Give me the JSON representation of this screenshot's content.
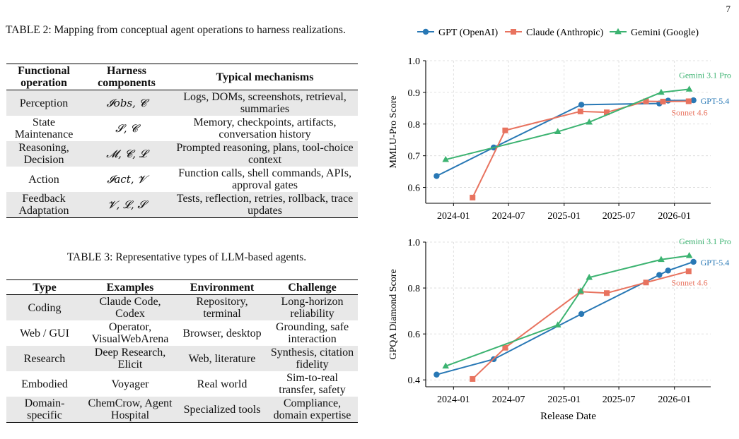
{
  "page_number": "7",
  "table2": {
    "caption": "TABLE 2: Mapping from conceptual agent operations to harness realizations.",
    "headers": [
      "Functional operation",
      "Harness components",
      "Typical mechanisms"
    ],
    "rows": [
      [
        "Perception",
        "𝓘obs, 𝓒",
        "Logs, DOMs, screenshots, retrieval, summaries"
      ],
      [
        "State Maintenance",
        "𝓢, 𝓒",
        "Memory, checkpoints, artifacts, conversation history"
      ],
      [
        "Reasoning, Decision",
        "𝓜, 𝓒, 𝓛",
        "Prompted reasoning, plans, tool-choice context"
      ],
      [
        "Action",
        "𝓘act, 𝓥",
        "Function calls, shell commands, APIs, approval gates"
      ],
      [
        "Feedback Adaptation",
        "𝓥, 𝓛, 𝓢",
        "Tests, reflection, retries, rollback, trace updates"
      ]
    ]
  },
  "table3": {
    "caption": "TABLE 3: Representative types of LLM-based agents.",
    "headers": [
      "Type",
      "Examples",
      "Environment",
      "Challenge"
    ],
    "rows": [
      [
        "Coding",
        "Claude Code, Codex",
        "Repository, terminal",
        "Long-horizon reliability"
      ],
      [
        "Web / GUI",
        "Operator, VisualWebArena",
        "Browser, desktop",
        "Grounding, safe interaction"
      ],
      [
        "Research",
        "Deep Research, Elicit",
        "Web, literature",
        "Synthesis, citation fidelity"
      ],
      [
        "Embodied",
        "Voyager",
        "Real world",
        "Sim-to-real transfer, safety"
      ],
      [
        "Domain-specific",
        "ChemCrow, Agent Hospital",
        "Specialized tools",
        "Compliance, domain expertise"
      ]
    ]
  },
  "chart_data": [
    {
      "type": "line",
      "ylabel": "MMLU-Pro Score",
      "xlabel": "",
      "ylim": [
        0.55,
        1.0
      ],
      "yticks": [
        0.6,
        0.7,
        0.8,
        0.9,
        1.0
      ],
      "xticks": [
        "2024-01",
        "2024-07",
        "2025-01",
        "2025-07",
        "2026-01"
      ],
      "grid": true,
      "legend": "top",
      "series": [
        {
          "name": "GPT (OpenAI)",
          "color": "#2878b5",
          "marker": "circle",
          "x": [
            "2023-11-06",
            "2024-05-13",
            "2025-02-27",
            "2025-11-12",
            "2025-12-11",
            "2026-03-05"
          ],
          "y": [
            0.636,
            0.726,
            0.861,
            0.865,
            0.874,
            0.875
          ],
          "end_label": "GPT-5.4"
        },
        {
          "name": "Claude (Anthropic)",
          "color": "#e8735f",
          "marker": "square",
          "x": [
            "2024-03-04",
            "2024-06-20",
            "2025-02-24",
            "2025-05-22",
            "2025-09-29",
            "2025-11-24",
            "2026-02-17"
          ],
          "y": [
            0.568,
            0.78,
            0.84,
            0.837,
            0.872,
            0.871,
            0.872
          ],
          "end_label": "Sonnet 4.6"
        },
        {
          "name": "Gemini (Google)",
          "color": "#3cb371",
          "marker": "triangle",
          "x": [
            "2023-12-06",
            "2024-12-11",
            "2025-03-25",
            "2025-11-18",
            "2026-02-19"
          ],
          "y": [
            0.688,
            0.776,
            0.806,
            0.9,
            0.91
          ],
          "end_label": "Gemini 3.1 Pro"
        }
      ]
    },
    {
      "type": "line",
      "ylabel": "GPQA Diamond Score",
      "xlabel": "Release Date",
      "ylim": [
        0.37,
        1.0
      ],
      "yticks": [
        0.4,
        0.6,
        0.8,
        1.0
      ],
      "xticks": [
        "2024-01",
        "2024-07",
        "2025-01",
        "2025-07",
        "2026-01"
      ],
      "grid": true,
      "series": [
        {
          "name": "GPT (OpenAI)",
          "color": "#2878b5",
          "marker": "circle",
          "x": [
            "2023-11-06",
            "2024-05-13",
            "2025-02-27",
            "2025-11-12",
            "2025-12-11",
            "2026-03-05"
          ],
          "y": [
            0.423,
            0.49,
            0.687,
            0.857,
            0.876,
            0.914
          ],
          "end_label": "GPT-5.4"
        },
        {
          "name": "Claude (Anthropic)",
          "color": "#e8735f",
          "marker": "square",
          "x": [
            "2024-03-04",
            "2024-06-20",
            "2025-02-24",
            "2025-05-22",
            "2025-09-29",
            "2026-02-17"
          ],
          "y": [
            0.404,
            0.54,
            0.784,
            0.778,
            0.824,
            0.873
          ],
          "end_label": "Sonnet 4.6"
        },
        {
          "name": "Gemini (Google)",
          "color": "#3cb371",
          "marker": "triangle",
          "x": [
            "2023-12-06",
            "2024-12-11",
            "2025-02-25",
            "2025-03-25",
            "2025-11-18",
            "2026-02-19"
          ],
          "y": [
            0.46,
            0.639,
            0.787,
            0.846,
            0.924,
            0.941
          ],
          "end_label": "Gemini 3.1 Pro"
        }
      ]
    }
  ]
}
